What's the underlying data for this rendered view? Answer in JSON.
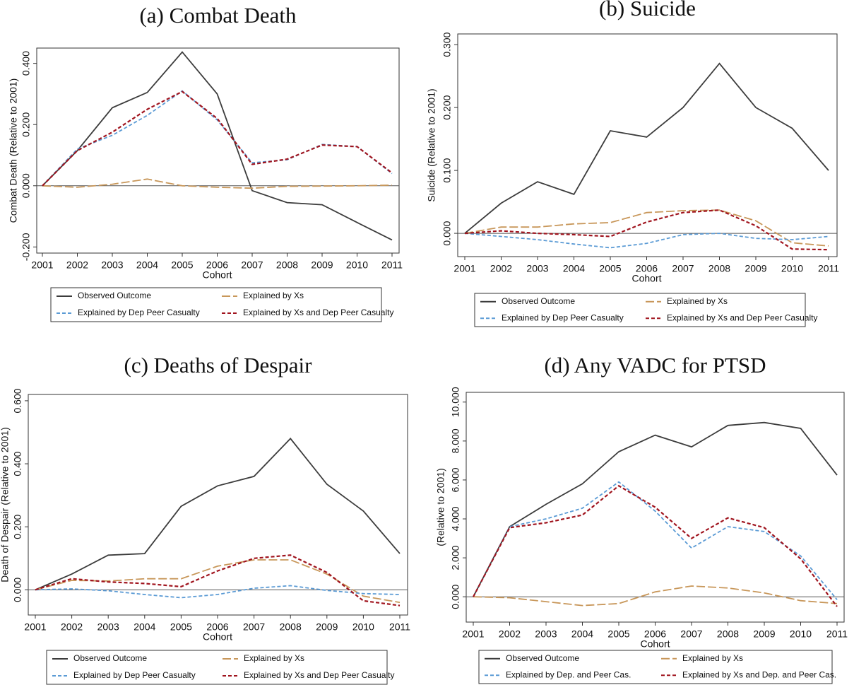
{
  "chart_data": [
    {
      "type": "line",
      "title": "(a) Combat Death",
      "xlabel": "Cohort",
      "ylabel": "Combat Death (Relative to 2001)",
      "categories": [
        "2001",
        "2002",
        "2003",
        "2004",
        "2005",
        "2006",
        "2007",
        "2008",
        "2009",
        "2010",
        "2011"
      ],
      "ylim": [
        -0.22,
        0.45
      ],
      "yticks": [
        {
          "value": -0.2,
          "label": "-0.200"
        },
        {
          "value": 0,
          "label": "0.000"
        },
        {
          "value": 0.2,
          "label": "0.200"
        },
        {
          "value": 0.4,
          "label": "0.400"
        }
      ],
      "zero_line": true,
      "series": [
        {
          "name": "Observed Outcome",
          "color": "#3c3c3c",
          "style": "solid",
          "values": [
            0,
            0.115,
            0.255,
            0.305,
            0.437,
            0.3,
            -0.016,
            -0.055,
            -0.062,
            -0.12,
            -0.177
          ]
        },
        {
          "name": "Explained by Xs",
          "color": "#c8975a",
          "style": "longdash",
          "values": [
            0,
            -0.005,
            0.005,
            0.022,
            0,
            -0.005,
            -0.008,
            -0.002,
            -0.001,
            0,
            0.002
          ]
        },
        {
          "name": "Explained by Dep Peer Casualty",
          "color": "#5b9bd5",
          "style": "dash",
          "values": [
            0,
            0.12,
            0.165,
            0.23,
            0.31,
            0.215,
            0.075,
            0.085,
            0.135,
            0.128,
            0.04
          ]
        },
        {
          "name": "Explained by Xs and Dep Peer Casualty",
          "color": "#a0141e",
          "style": "dash",
          "values": [
            0,
            0.115,
            0.175,
            0.25,
            0.308,
            0.22,
            0.07,
            0.087,
            0.133,
            0.128,
            0.042
          ]
        }
      ]
    },
    {
      "type": "line",
      "title": "(b) Suicide",
      "xlabel": "Cohort",
      "ylabel": "Suicide (Relative to 2001)",
      "categories": [
        "2001",
        "2002",
        "2003",
        "2004",
        "2005",
        "2006",
        "2007",
        "2008",
        "2009",
        "2010",
        "2011"
      ],
      "ylim": [
        -0.037,
        0.317
      ],
      "yticks": [
        {
          "value": 0,
          "label": "0.000"
        },
        {
          "value": 0.1,
          "label": "0.100"
        },
        {
          "value": 0.2,
          "label": "0.200"
        },
        {
          "value": 0.3,
          "label": "0.300"
        }
      ],
      "zero_line": true,
      "series": [
        {
          "name": "Observed Outcome",
          "color": "#3c3c3c",
          "style": "solid",
          "values": [
            0,
            0.048,
            0.082,
            0.062,
            0.163,
            0.153,
            0.2,
            0.27,
            0.2,
            0.167,
            0.1
          ]
        },
        {
          "name": "Explained by Xs",
          "color": "#c8975a",
          "style": "longdash",
          "values": [
            0,
            0.01,
            0.01,
            0.015,
            0.017,
            0.033,
            0.036,
            0.037,
            0.02,
            -0.015,
            -0.02
          ]
        },
        {
          "name": "Explained by Dep Peer Casualty",
          "color": "#5b9bd5",
          "style": "dash",
          "values": [
            0,
            -0.005,
            -0.01,
            -0.017,
            -0.023,
            -0.016,
            -0.002,
            0,
            -0.008,
            -0.01,
            -0.005
          ]
        },
        {
          "name": "Explained by Xs and Dep Peer Casualty",
          "color": "#a0141e",
          "style": "dash",
          "values": [
            0,
            0.004,
            0,
            -0.002,
            -0.005,
            0.018,
            0.033,
            0.037,
            0.012,
            -0.025,
            -0.026
          ]
        }
      ]
    },
    {
      "type": "line",
      "title": "(c) Deaths of Despair",
      "xlabel": "Cohort",
      "ylabel": "Death of Despair (Relative to 2001)",
      "categories": [
        "2001",
        "2002",
        "2003",
        "2004",
        "2005",
        "2006",
        "2007",
        "2008",
        "2009",
        "2010",
        "2011"
      ],
      "ylim": [
        -0.08,
        0.62
      ],
      "yticks": [
        {
          "value": 0,
          "label": "0.000"
        },
        {
          "value": 0.2,
          "label": "0.200"
        },
        {
          "value": 0.4,
          "label": "0.400"
        },
        {
          "value": 0.6,
          "label": "0.600"
        }
      ],
      "zero_line": true,
      "series": [
        {
          "name": "Observed Outcome",
          "color": "#3c3c3c",
          "style": "solid",
          "values": [
            0,
            0.05,
            0.11,
            0.115,
            0.265,
            0.33,
            0.36,
            0.48,
            0.335,
            0.25,
            0.115
          ]
        },
        {
          "name": "Explained by Xs",
          "color": "#c8975a",
          "style": "longdash",
          "values": [
            0,
            0.03,
            0.028,
            0.035,
            0.035,
            0.075,
            0.095,
            0.095,
            0.05,
            -0.02,
            -0.04
          ]
        },
        {
          "name": "Explained by Dep Peer Casualty",
          "color": "#5b9bd5",
          "style": "dash",
          "values": [
            0,
            0.003,
            -0.003,
            -0.015,
            -0.025,
            -0.015,
            0.005,
            0.013,
            -0.002,
            -0.012,
            -0.015
          ]
        },
        {
          "name": "Explained by Xs and Dep Peer Casualty",
          "color": "#a0141e",
          "style": "dash",
          "values": [
            0,
            0.035,
            0.025,
            0.02,
            0.01,
            0.06,
            0.1,
            0.11,
            0.055,
            -0.035,
            -0.05
          ]
        }
      ]
    },
    {
      "type": "line",
      "title": "(d) Any VADC for PTSD",
      "xlabel": "Cohort",
      "ylabel": "(Relative to 2001)",
      "categories": [
        "2001",
        "2002",
        "2003",
        "2004",
        "2005",
        "2006",
        "2007",
        "2008",
        "2009",
        "2010",
        "2011"
      ],
      "ylim": [
        -1.3,
        10.5
      ],
      "yticks": [
        {
          "value": 0,
          "label": "0.000"
        },
        {
          "value": 2,
          "label": "2.000"
        },
        {
          "value": 4,
          "label": "4.000"
        },
        {
          "value": 6,
          "label": "6.000"
        },
        {
          "value": 8,
          "label": "8.000"
        },
        {
          "value": 10,
          "label": "10.000"
        }
      ],
      "zero_line": true,
      "series": [
        {
          "name": "Observed Outcome",
          "color": "#3c3c3c",
          "style": "solid",
          "values": [
            0,
            3.6,
            4.75,
            5.8,
            7.45,
            8.3,
            7.7,
            8.8,
            8.95,
            8.65,
            6.25
          ]
        },
        {
          "name": "Explained by Xs",
          "color": "#c8975a",
          "style": "longdash",
          "values": [
            0,
            -0.05,
            -0.25,
            -0.45,
            -0.35,
            0.25,
            0.55,
            0.45,
            0.2,
            -0.2,
            -0.35
          ]
        },
        {
          "name": "Explained by Dep. and Peer Cas.",
          "color": "#5b9bd5",
          "style": "dash",
          "values": [
            0,
            3.6,
            4.0,
            4.55,
            5.9,
            4.4,
            2.5,
            3.6,
            3.35,
            2.1,
            -0.15
          ]
        },
        {
          "name": "Explained by Xs and Dep. and Peer Cas.",
          "color": "#a0141e",
          "style": "dash",
          "values": [
            0,
            3.55,
            3.8,
            4.2,
            5.7,
            4.6,
            3.0,
            4.05,
            3.55,
            1.95,
            -0.5
          ]
        }
      ]
    }
  ]
}
